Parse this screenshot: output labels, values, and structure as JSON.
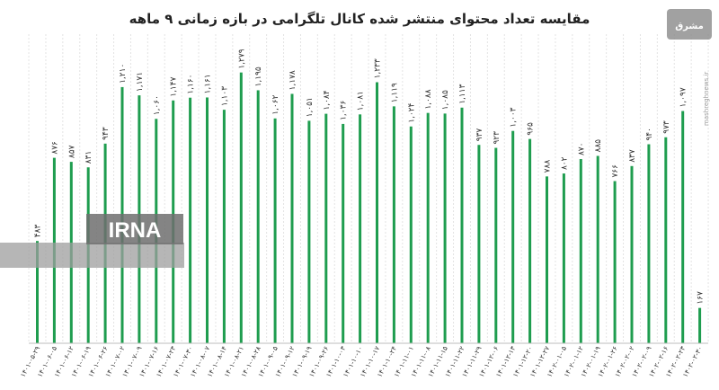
{
  "chart_data": {
    "type": "bar",
    "title": "مقایسه تعداد محتوای منتشر شده کانال تلگرامی در بازه زمانی ۹ ماهه",
    "bar_color": "#1f9d4f",
    "gridlines": true,
    "categories": [
      "۱۴۰۱-۰۵-۲۹",
      "۱۴۰۱-۰۶-۰۵",
      "۱۴۰۱-۰۶-۱۲",
      "۱۴۰۱-۰۶-۱۹",
      "۱۴۰۱-۰۶-۲۶",
      "۱۴۰۱-۰۷-۰۲",
      "۱۴۰۱-۰۷-۰۹",
      "۱۴۰۱-۰۷-۱۶",
      "۱۴۰۱-۰۷-۲۳",
      "۱۴۰۱-۰۷-۳۰",
      "۱۴۰۱-۰۸-۰۷",
      "۱۴۰۱-۰۸-۱۴",
      "۱۴۰۱-۰۸-۲۱",
      "۱۴۰۱-۰۸-۲۸",
      "۱۴۰۱-۰۹-۰۵",
      "۱۴۰۱-۰۹-۱۲",
      "۱۴۰۱-۰۹-۱۹",
      "۱۴۰۱-۰۹-۲۶",
      "۱۴۰۱-۱۰-۰۳",
      "۱۴۰۱-۱۰-۱۰",
      "۱۴۰۱-۱۰-۱۷",
      "۱۴۰۱-۱۰-۲۴",
      "۱۴۰۱-۱۱-۰۱",
      "۱۴۰۱-۱۱-۰۸",
      "۱۴۰۱-۱۱-۱۵",
      "۱۴۰۱-۱۱-۲۲",
      "۱۴۰۱-۱۱-۲۹",
      "۱۴۰۱-۱۲-۰۶",
      "۱۴۰۱-۱۲-۱۳",
      "۱۴۰۱-۱۲-۲۰",
      "۱۴۰۱-۱۲-۲۷",
      "۱۴۰۲-۰۱-۰۵",
      "۱۴۰۲-۰۱-۱۲",
      "۱۴۰۲-۰۱-۱۹",
      "۱۴۰۲-۰۱-۲۶",
      "۱۴۰۲-۰۲-۰۲",
      "۱۴۰۲-۰۲-۰۹",
      "۱۴۰۲-۰۲-۱۶",
      "۱۴۰۲-۰۲-۲۳",
      "۱۴۰۲-۰۲-۳۰"
    ],
    "values": [
      483,
      876,
      857,
      831,
      943,
      1210,
      1171,
      1060,
      1147,
      1160,
      1161,
      1103,
      1279,
      1195,
      1062,
      1178,
      1051,
      1084,
      1036,
      1081,
      1233,
      1119,
      1024,
      1088,
      1085,
      1113,
      937,
      923,
      1003,
      965,
      788,
      802,
      870,
      885,
      766,
      837,
      940,
      973,
      1097,
      167
    ],
    "value_labels": [
      "۴۸۳",
      "۸۷۶",
      "۸۵۷",
      "۸۳۱",
      "۹۴۳",
      "۱,۲۱۰",
      "۱,۱۷۱",
      "۱,۰۶۰",
      "۱,۱۴۷",
      "۱,۱۶۰",
      "۱,۱۶۱",
      "۱,۱۰۳",
      "۱,۲۷۹",
      "۱,۱۹۵",
      "۱,۰۶۲",
      "۱,۱۷۸",
      "۱,۰۵۱",
      "۱,۰۸۴",
      "۱,۰۳۶",
      "۱,۰۸۱",
      "۱,۲۳۳",
      "۱,۱۱۹",
      "۱,۰۲۴",
      "۱,۰۸۸",
      "۱,۰۸۵",
      "۱,۱۱۳",
      "۹۳۷",
      "۹۲۳",
      "۱,۰۰۳",
      "۹۶۵",
      "۷۸۸",
      "۸۰۲",
      "۸۷۰",
      "۸۸۵",
      "۷۶۶",
      "۸۳۷",
      "۹۴۰",
      "۹۷۳",
      "۱,۰۹۷",
      "۱۶۷"
    ],
    "ylim": [
      0,
      1350
    ]
  },
  "watermark": {
    "text": "IRNA"
  },
  "site_label": "mashreghnews.ir",
  "logo_text": "مشرق"
}
